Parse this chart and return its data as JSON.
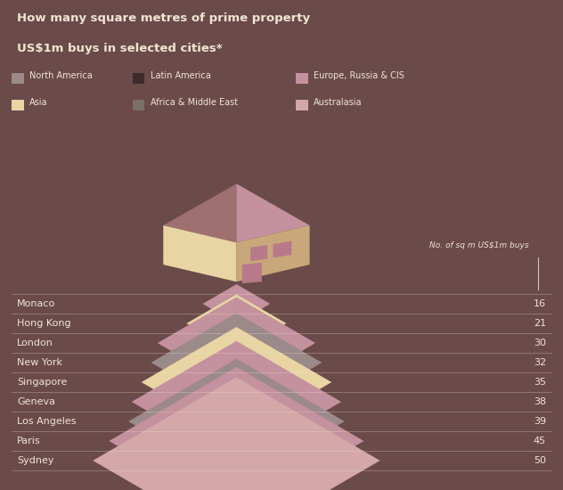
{
  "title_line1": "How many square metres of prime property",
  "title_line2": "US$1m buys in selected cities*",
  "background_color": "#6b4a4a",
  "text_color": "#f0e6d3",
  "cities": [
    "Monaco",
    "Hong Kong",
    "London",
    "New York",
    "Singapore",
    "Geneva",
    "Los Angeles",
    "Paris",
    "Sydney"
  ],
  "values": [
    16,
    21,
    30,
    32,
    35,
    38,
    39,
    45,
    50
  ],
  "regions": [
    "Europe, Russia & CIS",
    "Asia",
    "Europe, Russia & CIS",
    "North America",
    "Asia",
    "Europe, Russia & CIS",
    "North America",
    "Europe, Russia & CIS",
    "Australasia"
  ],
  "region_colors": {
    "North America": "#9c8a8a",
    "Latin America": "#3d2b2b",
    "Europe, Russia & CIS": "#c4919e",
    "Asia": "#e8d5a3",
    "Africa & Middle East": "#7a7065",
    "Australasia": "#d4a8a8"
  },
  "legend_items": [
    {
      "label": "North America",
      "color": "#9c8a8a"
    },
    {
      "label": "Latin America",
      "color": "#3d2b2b"
    },
    {
      "label": "Europe, Russia & CIS",
      "color": "#c4919e"
    },
    {
      "label": "Asia",
      "color": "#e8d5a3"
    },
    {
      "label": "Africa & Middle East",
      "color": "#7a7065"
    },
    {
      "label": "Australasia",
      "color": "#d4a8a8"
    }
  ],
  "annotation": "No. of sq m US$1m buys",
  "house_roof_dark": "#9e7070",
  "house_roof_light": "#c4919e",
  "house_wall_left": "#e8d5a3",
  "house_wall_right": "#c8a87a",
  "win_door_color": "#b87a8a"
}
